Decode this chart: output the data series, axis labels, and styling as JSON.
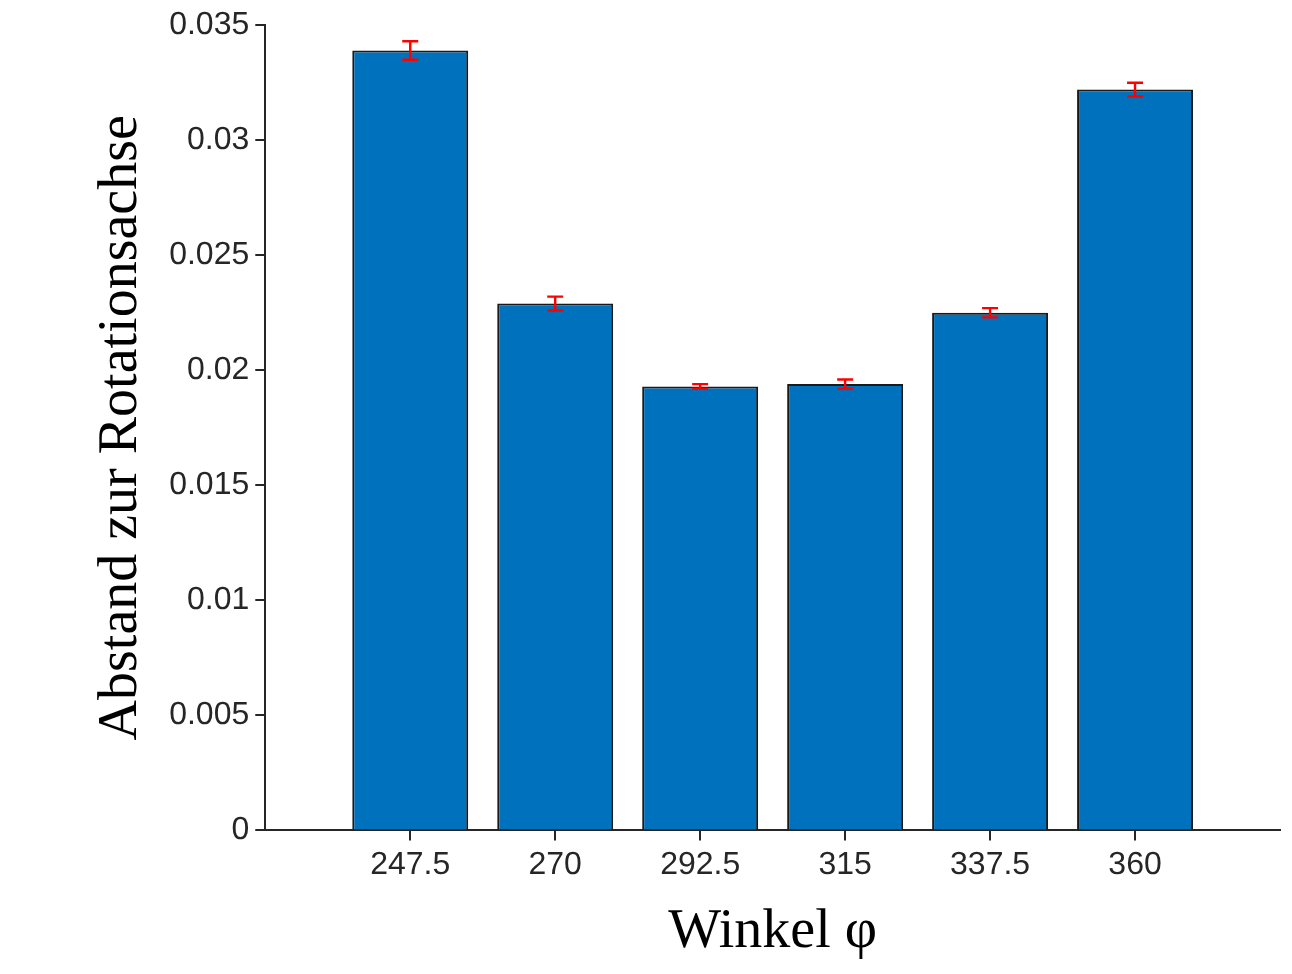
{
  "chart_data": {
    "type": "bar",
    "xlabel": "Winkel φ",
    "ylabel": "Abstand zur Rotationsachse",
    "x": [
      247.5,
      270,
      292.5,
      315,
      337.5,
      360
    ],
    "values": [
      0.0339,
      0.0229,
      0.0193,
      0.0194,
      0.0225,
      0.0322
    ],
    "errors": [
      0.0004,
      0.0003,
      0.0001,
      0.0002,
      0.0002,
      0.0003
    ],
    "color": "#0072bd",
    "xlim": [
      225,
      382.5
    ],
    "xticks": [
      247.5,
      270,
      292.5,
      315,
      337.5,
      360
    ],
    "ylim": [
      0,
      0.035
    ],
    "yticks": [
      0,
      0.005,
      0.01,
      0.015,
      0.02,
      0.025,
      0.03,
      0.035
    ],
    "grid": false
  }
}
